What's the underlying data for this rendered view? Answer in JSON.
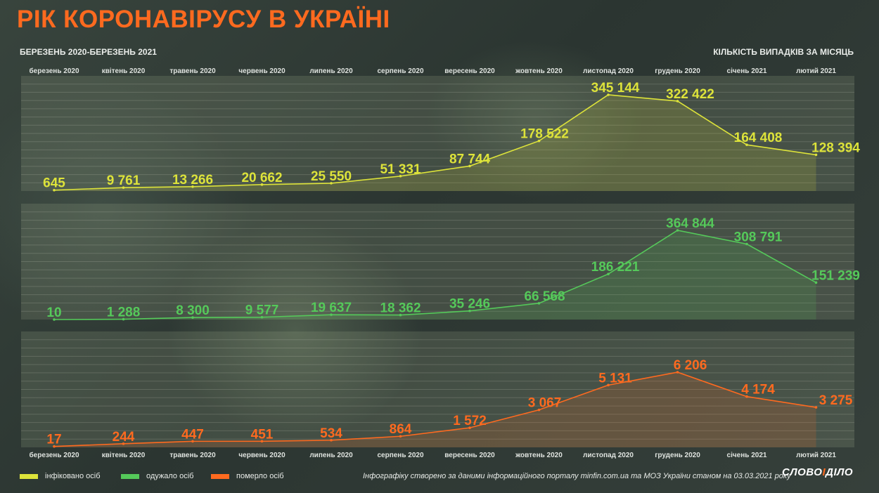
{
  "header": {
    "title": "РІК КОРОНАВІРУСУ В УКРАЇНІ",
    "subtitle": "БЕРЕЗЕНЬ 2020-БЕРЕЗЕНЬ 2021",
    "unit_note": "КІЛЬКІСТЬ ВИПАДКІВ ЗА МІСЯЦЬ"
  },
  "legend": {
    "infected": "інфіковано осіб",
    "recovered": "одужало осіб",
    "died": "померло осіб"
  },
  "footer": {
    "source": "Інфографіку створено за даними інформаційного порталу minfin.com.ua та МОЗ України станом на 03.03.2021 року",
    "brand_left": "СЛОВО",
    "brand_mid": "І",
    "brand_right": "ДІЛО"
  },
  "colors": {
    "infected": "#dde33a",
    "recovered": "#55c95a",
    "died": "#ff6a1f",
    "title": "#ff6a1f"
  },
  "chart_data": {
    "type": "line",
    "categories": [
      "березень 2020",
      "квітень 2020",
      "травень 2020",
      "червень 2020",
      "липень 2020",
      "серпень 2020",
      "вересень 2020",
      "жовтень 2020",
      "листопад 2020",
      "грудень 2020",
      "січень 2021",
      "лютий 2021"
    ],
    "grid": true,
    "series": [
      {
        "key": "infected",
        "name": "інфіковано осіб",
        "values": [
          645,
          9761,
          13266,
          20662,
          25550,
          51331,
          87744,
          178522,
          345144,
          322422,
          164408,
          128394
        ],
        "labels": [
          "645",
          "9 761",
          "13 266",
          "20 662",
          "25 550",
          "51 331",
          "87 744",
          "178 522",
          "345 144",
          "322 422",
          "164 408",
          "128 394"
        ]
      },
      {
        "key": "recovered",
        "name": "одужало осіб",
        "values": [
          10,
          1288,
          8300,
          9577,
          19637,
          18362,
          35246,
          66568,
          186221,
          364844,
          308791,
          151239
        ],
        "labels": [
          "10",
          "1 288",
          "8 300",
          "9 577",
          "19 637",
          "18 362",
          "35 246",
          "66 568",
          "186 221",
          "364 844",
          "308 791",
          "151 239"
        ]
      },
      {
        "key": "died",
        "name": "померло осіб",
        "values": [
          17,
          244,
          447,
          451,
          534,
          864,
          1572,
          3067,
          5131,
          6206,
          4174,
          3275
        ],
        "labels": [
          "17",
          "244",
          "447",
          "451",
          "534",
          "864",
          "1 572",
          "3 067",
          "5 131",
          "6 206",
          "4 174",
          "3 275"
        ]
      }
    ]
  }
}
